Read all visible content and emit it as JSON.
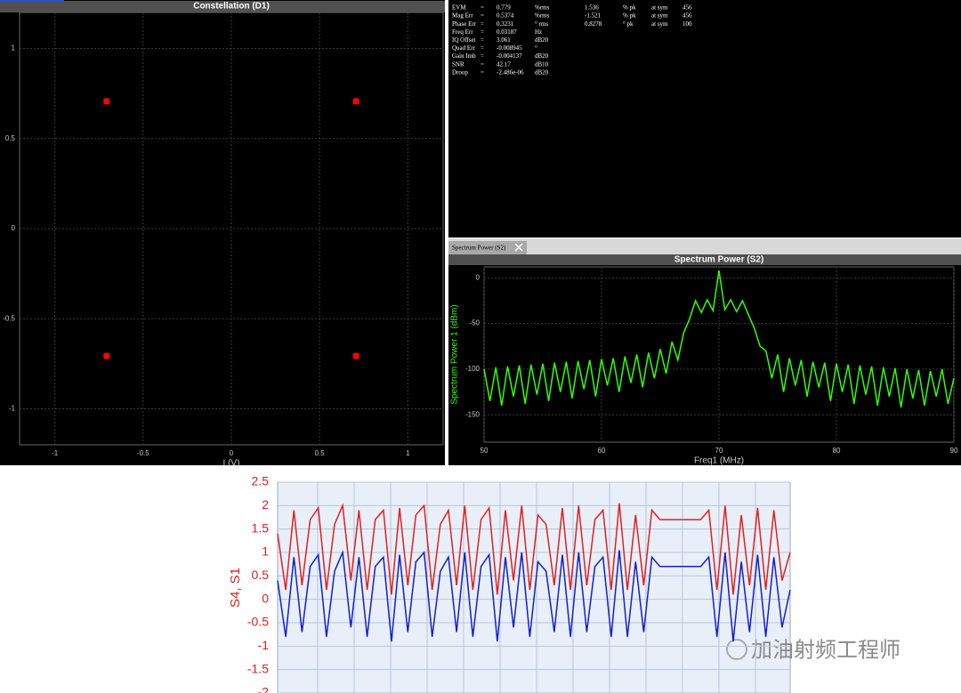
{
  "chart_data": [
    {
      "type": "scatter",
      "title": "Constellation (D1)",
      "x_label": "I (V)",
      "color": "#ff0000",
      "x": [
        -0.707,
        0.707,
        -0.707,
        0.707
      ],
      "values": [
        0.707,
        0.707,
        -0.707,
        -0.707
      ],
      "xlim": [
        -1.2,
        1.2
      ],
      "ylim": [
        -1.2,
        1.2
      ],
      "xticks": [
        -1,
        -0.5,
        0,
        0.5,
        1
      ],
      "yticks": [
        -1,
        -0.5,
        0,
        0.5,
        1
      ],
      "grid": true
    },
    {
      "type": "line",
      "title": "Spectrum Power (S2)",
      "x_label": "Freq1 (MHz)",
      "y_label": "Spectrum Power 1 (dBm)",
      "color": "#33ff00",
      "x": [
        50,
        50.5,
        51,
        51.5,
        52,
        52.5,
        53,
        53.5,
        54,
        54.5,
        55,
        55.5,
        56,
        56.5,
        57,
        57.5,
        58,
        58.5,
        59,
        59.5,
        60,
        60.5,
        61,
        61.5,
        62,
        62.5,
        63,
        63.5,
        64,
        64.5,
        65,
        65.5,
        66,
        66.5,
        67,
        67.5,
        68,
        68.5,
        69,
        69.5,
        70,
        70.5,
        71,
        71.5,
        72,
        72.5,
        73,
        73.5,
        74,
        74.5,
        75,
        75.5,
        76,
        76.5,
        77,
        77.5,
        78,
        78.5,
        79,
        79.5,
        80,
        80.5,
        81,
        81.5,
        82,
        82.5,
        83,
        83.5,
        84,
        84.5,
        85,
        85.5,
        86,
        86.5,
        87,
        87.5,
        88,
        88.5,
        89,
        89.5,
        90
      ],
      "values": [
        -100,
        -135,
        -98,
        -140,
        -97,
        -130,
        -96,
        -138,
        -95,
        -128,
        -94,
        -135,
        -93,
        -125,
        -92,
        -132,
        -91,
        -122,
        -90,
        -130,
        -89,
        -118,
        -88,
        -125,
        -86,
        -115,
        -84,
        -120,
        -82,
        -110,
        -78,
        -105,
        -70,
        -90,
        -60,
        -45,
        -25,
        -38,
        -24,
        -36,
        8,
        -35,
        -24,
        -37,
        -25,
        -40,
        -55,
        -75,
        -80,
        -110,
        -84,
        -125,
        -88,
        -118,
        -90,
        -130,
        -92,
        -120,
        -93,
        -135,
        -94,
        -125,
        -95,
        -138,
        -96,
        -128,
        -97,
        -140,
        -98,
        -130,
        -99,
        -142,
        -100,
        -132,
        -101,
        -140,
        -102,
        -130,
        -100,
        -138,
        -110
      ],
      "xlim": [
        50,
        90
      ],
      "ylim": [
        -180,
        12
      ],
      "xticks": [
        50,
        60,
        70,
        80,
        90
      ],
      "yticks": [
        0,
        -50,
        -100,
        -150
      ],
      "grid": true
    },
    {
      "type": "line",
      "y_label": "S4, S1",
      "series": [
        {
          "color": "#e02020",
          "values": [
            1.4,
            0.2,
            1.9,
            0.3,
            1.7,
            1.95,
            0.2,
            1.6,
            2.0,
            0.4,
            1.9,
            0.2,
            1.7,
            1.9,
            0.1,
            1.95,
            0.3,
            1.8,
            2.0,
            0.2,
            1.6,
            1.9,
            0.3,
            2.0,
            0.2,
            1.7,
            1.95,
            0.1,
            1.9,
            0.4,
            2.0,
            0.2,
            1.8,
            1.6,
            0.3,
            1.95,
            0.2,
            2.0,
            0.3,
            1.7,
            1.9,
            0.2,
            2.05,
            0.2,
            1.8,
            0.3,
            1.9,
            1.7,
            1.7,
            1.7,
            1.7,
            1.7,
            1.7,
            1.9,
            0.2,
            2.0,
            0.1,
            1.8,
            0.3,
            1.95,
            0.2,
            1.9,
            0.4,
            1.0
          ]
        },
        {
          "color": "#1020d0",
          "values": [
            0.4,
            -0.8,
            0.9,
            -0.7,
            0.7,
            0.95,
            -0.8,
            0.6,
            1.0,
            -0.6,
            0.9,
            -0.8,
            0.7,
            0.9,
            -0.9,
            0.95,
            -0.7,
            0.8,
            1.0,
            -0.8,
            0.6,
            0.9,
            -0.7,
            1.0,
            -0.8,
            0.7,
            0.95,
            -0.9,
            0.9,
            -0.6,
            1.0,
            -0.8,
            0.8,
            0.6,
            -0.7,
            0.95,
            -0.8,
            1.0,
            -0.7,
            0.7,
            0.9,
            -0.8,
            1.05,
            -0.8,
            0.8,
            -0.7,
            0.9,
            0.7,
            0.7,
            0.7,
            0.7,
            0.7,
            0.7,
            0.9,
            -0.8,
            1.0,
            -0.9,
            0.8,
            -0.7,
            0.95,
            -0.8,
            0.9,
            -0.6,
            0.2
          ]
        }
      ],
      "ylim": [
        -2,
        2.5
      ],
      "yticks": [
        -2,
        -1.5,
        -1,
        -0.5,
        0,
        0.5,
        1,
        1.5,
        2,
        2.5
      ],
      "grid": true
    }
  ],
  "error_summary": {
    "rows": [
      [
        "EVM",
        "=",
        "0.779",
        "%rms",
        "1.536",
        "% pk",
        "at sym",
        "456"
      ],
      [
        "Mag Err",
        "=",
        "0.5374",
        "%rms",
        "-1.521",
        "% pk",
        "at sym",
        "456"
      ],
      [
        "Phase Err",
        "=",
        "0.3231",
        "° rms",
        "0.8278",
        "° pk",
        "at sym",
        "100"
      ],
      [
        "Freq Err",
        "=",
        "0.03187",
        "Hz"
      ],
      [
        "IQ Offset",
        "=",
        "3.061",
        "dB20"
      ],
      [
        "Quad Err",
        "=",
        "-0.008945",
        "°"
      ],
      [
        "Gain Imb",
        "=",
        "-0.004137",
        "dB20"
      ],
      [
        "SNR",
        "=",
        "42.17",
        "dB10"
      ],
      [
        "Droop",
        "=",
        "-2.486e-06",
        "dB20"
      ]
    ]
  },
  "tab": "Spectrum Power (S2)",
  "watermark": "加油射频工程师"
}
